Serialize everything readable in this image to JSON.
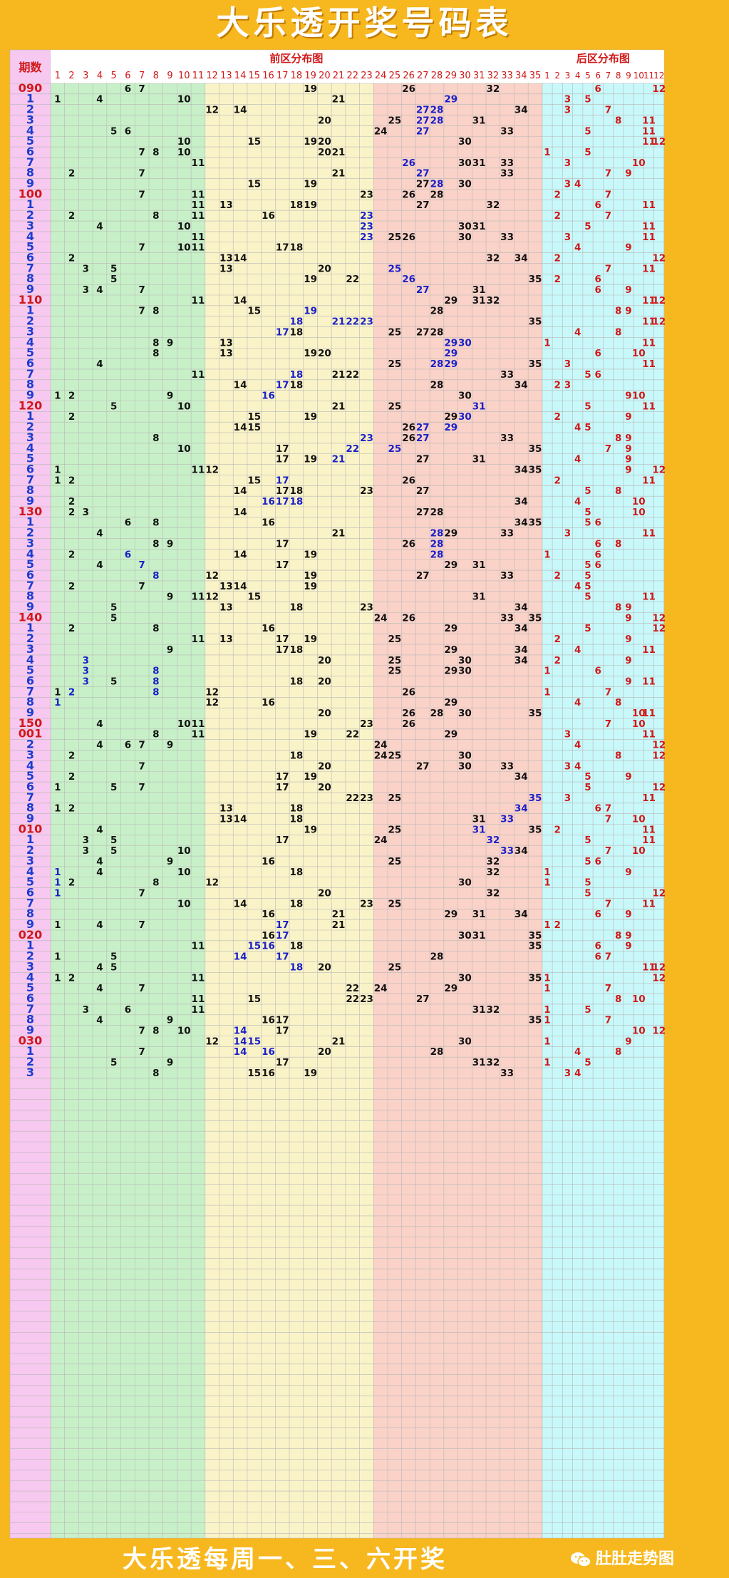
{
  "title": "大乐透开奖号码表",
  "footer": {
    "slogan": "大乐透每周一、三、六开奖",
    "brand": "肚肚走势图"
  },
  "headers": {
    "period": "期数",
    "front": "前区分布图",
    "back": "后区分布图"
  },
  "front_numbers": [
    "1",
    "2",
    "3",
    "4",
    "5",
    "6",
    "7",
    "8",
    "9",
    "10",
    "11",
    "12",
    "13",
    "14",
    "15",
    "16",
    "17",
    "18",
    "19",
    "20",
    "21",
    "22",
    "23",
    "24",
    "25",
    "26",
    "27",
    "28",
    "29",
    "30",
    "31",
    "32",
    "33",
    "34",
    "35"
  ],
  "back_numbers": [
    "1",
    "2",
    "3",
    "4",
    "5",
    "6",
    "7",
    "8",
    "9",
    "10",
    "11",
    "12"
  ],
  "colors": {
    "period_bg": "#f7c8f0",
    "front_zones": [
      "#c8f0c8",
      "#faf3c8",
      "#fad2c8"
    ],
    "back_bg": "#c8f8fa",
    "black": "#111111",
    "blue": "#1a20c8",
    "red": "#d01818",
    "grid_line": "#b8b8b8"
  },
  "rows": [
    {
      "p": "090",
      "pc": "r",
      "f": [
        6,
        7,
        19,
        26,
        32
      ],
      "b": [
        6,
        12
      ]
    },
    {
      "p": "1",
      "f": [
        1,
        4,
        10,
        21,
        29
      ],
      "fb": [
        29
      ],
      "b": [
        3,
        5
      ]
    },
    {
      "p": "2",
      "f": [
        12,
        14,
        27,
        28,
        34
      ],
      "fb": [
        27,
        28
      ],
      "b": [
        3,
        7
      ]
    },
    {
      "p": "3",
      "f": [
        20,
        25,
        27,
        28,
        31
      ],
      "fb": [
        27,
        28
      ],
      "b": [
        8,
        11
      ]
    },
    {
      "p": "4",
      "f": [
        5,
        6,
        24,
        27,
        33
      ],
      "fb": [
        27
      ],
      "b": [
        5,
        11
      ]
    },
    {
      "p": "5",
      "f": [
        10,
        15,
        19,
        20,
        30
      ],
      "b": [
        11,
        12
      ]
    },
    {
      "p": "6",
      "f": [
        7,
        8,
        10,
        20,
        21
      ],
      "b": [
        1,
        5
      ]
    },
    {
      "p": "7",
      "f": [
        11,
        26,
        30,
        31,
        33
      ],
      "fb": [
        26
      ],
      "b": [
        3,
        10
      ]
    },
    {
      "p": "8",
      "f": [
        2,
        7,
        21,
        27,
        33
      ],
      "fb": [
        27
      ],
      "b": [
        7,
        9
      ]
    },
    {
      "p": "9",
      "f": [
        15,
        19,
        27,
        28,
        30
      ],
      "fb": [
        28
      ],
      "b": [
        3,
        4
      ]
    },
    {
      "p": "100",
      "pc": "r",
      "f": [
        7,
        11,
        23,
        26,
        28
      ],
      "b": [
        2,
        7
      ]
    },
    {
      "p": "1",
      "f": [
        11,
        13,
        18,
        19,
        27,
        32
      ],
      "b": [
        6,
        11
      ]
    },
    {
      "p": "2",
      "f": [
        2,
        8,
        11,
        16,
        23
      ],
      "fb": [
        23
      ],
      "b": [
        2,
        7
      ]
    },
    {
      "p": "3",
      "f": [
        4,
        10,
        23,
        30,
        31
      ],
      "fb": [
        23
      ],
      "b": [
        5,
        11
      ]
    },
    {
      "p": "4",
      "f": [
        11,
        23,
        25,
        26,
        30,
        33
      ],
      "fb": [
        23
      ],
      "b": [
        3,
        11
      ]
    },
    {
      "p": "5",
      "f": [
        7,
        10,
        11,
        17,
        18
      ],
      "b": [
        4,
        9
      ]
    },
    {
      "p": "6",
      "f": [
        2,
        13,
        14,
        32,
        34
      ],
      "b": [
        2,
        12
      ]
    },
    {
      "p": "7",
      "f": [
        3,
        5,
        13,
        20,
        25
      ],
      "fb": [
        25
      ],
      "b": [
        7,
        11
      ]
    },
    {
      "p": "8",
      "f": [
        5,
        19,
        22,
        26,
        35
      ],
      "fb": [
        26
      ],
      "b": [
        2,
        6
      ]
    },
    {
      "p": "9",
      "f": [
        3,
        4,
        7,
        27,
        31
      ],
      "fb": [
        27
      ],
      "b": [
        6,
        9
      ]
    },
    {
      "p": "110",
      "pc": "r",
      "f": [
        11,
        14,
        29,
        31,
        32
      ],
      "b": [
        11,
        12
      ]
    },
    {
      "p": "1",
      "f": [
        7,
        8,
        15,
        19,
        28
      ],
      "fb": [
        19
      ],
      "b": [
        8,
        9
      ]
    },
    {
      "p": "2",
      "f": [
        18,
        21,
        22,
        23,
        35
      ],
      "fb": [
        18,
        21,
        22,
        23
      ],
      "b": [
        11,
        12
      ]
    },
    {
      "p": "3",
      "f": [
        17,
        18,
        25,
        27,
        28
      ],
      "fb": [
        17
      ],
      "b": [
        4,
        8
      ]
    },
    {
      "p": "4",
      "f": [
        8,
        9,
        13,
        29,
        30
      ],
      "fb": [
        29,
        30
      ],
      "b": [
        1,
        11
      ]
    },
    {
      "p": "5",
      "f": [
        8,
        13,
        19,
        20,
        29
      ],
      "fb": [
        29
      ],
      "b": [
        6,
        10
      ]
    },
    {
      "p": "6",
      "f": [
        4,
        25,
        28,
        29,
        35
      ],
      "fb": [
        28,
        29
      ],
      "b": [
        3,
        11
      ]
    },
    {
      "p": "7",
      "f": [
        11,
        18,
        21,
        22,
        33
      ],
      "fb": [
        18
      ],
      "b": [
        5,
        6
      ]
    },
    {
      "p": "8",
      "f": [
        14,
        17,
        18,
        28,
        34
      ],
      "fb": [
        17
      ],
      "b": [
        2,
        3
      ]
    },
    {
      "p": "9",
      "f": [
        1,
        2,
        9,
        16,
        30
      ],
      "fb": [
        16
      ],
      "b": [
        9,
        10
      ]
    },
    {
      "p": "120",
      "pc": "r",
      "f": [
        5,
        10,
        21,
        25,
        31
      ],
      "fb": [
        31
      ],
      "b": [
        5,
        11
      ]
    },
    {
      "p": "1",
      "f": [
        2,
        15,
        19,
        29,
        30
      ],
      "fb": [
        30
      ],
      "b": [
        2,
        9
      ]
    },
    {
      "p": "2",
      "f": [
        14,
        15,
        26,
        27,
        29
      ],
      "fb": [
        27,
        29
      ],
      "b": [
        4,
        5
      ]
    },
    {
      "p": "3",
      "f": [
        8,
        23,
        26,
        27,
        33
      ],
      "fb": [
        23,
        27
      ],
      "b": [
        8,
        9
      ]
    },
    {
      "p": "4",
      "f": [
        10,
        17,
        22,
        25,
        35
      ],
      "fb": [
        22,
        25
      ],
      "b": [
        7,
        9
      ]
    },
    {
      "p": "5",
      "f": [
        17,
        19,
        21,
        27,
        31
      ],
      "fb": [
        21
      ],
      "b": [
        4,
        9
      ]
    },
    {
      "p": "6",
      "f": [
        1,
        11,
        12,
        34,
        35
      ],
      "b": [
        9,
        12
      ]
    },
    {
      "p": "7",
      "f": [
        1,
        2,
        15,
        17,
        26
      ],
      "fb": [
        17
      ],
      "b": [
        2,
        11
      ]
    },
    {
      "p": "8",
      "f": [
        14,
        17,
        18,
        23,
        27
      ],
      "b": [
        5,
        8
      ]
    },
    {
      "p": "9",
      "f": [
        2,
        16,
        17,
        18,
        34
      ],
      "fb": [
        16,
        17,
        18
      ],
      "b": [
        4,
        10
      ]
    },
    {
      "p": "130",
      "pc": "r",
      "f": [
        2,
        3,
        14,
        27,
        28
      ],
      "b": [
        5,
        10
      ]
    },
    {
      "p": "1",
      "f": [
        6,
        8,
        16,
        34,
        35
      ],
      "b": [
        5,
        6
      ]
    },
    {
      "p": "2",
      "f": [
        4,
        21,
        28,
        29,
        33
      ],
      "fb": [
        28
      ],
      "b": [
        3,
        11
      ]
    },
    {
      "p": "3",
      "f": [
        8,
        9,
        17,
        26,
        28
      ],
      "fb": [
        28
      ],
      "b": [
        6,
        8
      ]
    },
    {
      "p": "4",
      "f": [
        2,
        6,
        14,
        19,
        28
      ],
      "fb": [
        6,
        28
      ],
      "b": [
        1,
        6
      ]
    },
    {
      "p": "5",
      "f": [
        4,
        7,
        17,
        29,
        31
      ],
      "fb": [
        7
      ],
      "b": [
        5,
        6
      ]
    },
    {
      "p": "6",
      "f": [
        8,
        12,
        19,
        27,
        33
      ],
      "fb": [
        8
      ],
      "b": [
        2,
        5
      ]
    },
    {
      "p": "7",
      "f": [
        2,
        7,
        13,
        14,
        19
      ],
      "b": [
        4,
        5
      ]
    },
    {
      "p": "8",
      "f": [
        9,
        11,
        12,
        15,
        31
      ],
      "b": [
        5,
        11
      ]
    },
    {
      "p": "9",
      "f": [
        5,
        13,
        18,
        23,
        34
      ],
      "b": [
        8,
        9
      ]
    },
    {
      "p": "140",
      "pc": "r",
      "f": [
        5,
        24,
        26,
        33,
        35
      ],
      "b": [
        9,
        12
      ]
    },
    {
      "p": "1",
      "f": [
        2,
        8,
        16,
        29,
        34
      ],
      "b": [
        5,
        12
      ]
    },
    {
      "p": "2",
      "f": [
        11,
        13,
        17,
        19,
        25
      ],
      "b": [
        2,
        9
      ]
    },
    {
      "p": "3",
      "f": [
        9,
        17,
        18,
        29,
        34
      ],
      "b": [
        4,
        11
      ]
    },
    {
      "p": "4",
      "f": [
        3,
        20,
        25,
        30,
        34
      ],
      "fb": [
        3
      ],
      "b": [
        2,
        9
      ]
    },
    {
      "p": "5",
      "f": [
        3,
        8,
        25,
        29,
        30
      ],
      "fb": [
        3,
        8
      ],
      "b": [
        1,
        6
      ]
    },
    {
      "p": "6",
      "f": [
        3,
        5,
        8,
        18,
        20
      ],
      "fb": [
        3,
        8
      ],
      "b": [
        9,
        11
      ]
    },
    {
      "p": "7",
      "f": [
        1,
        2,
        8,
        12,
        26
      ],
      "fb": [
        2,
        8
      ],
      "b": [
        1,
        7
      ]
    },
    {
      "p": "8",
      "f": [
        1,
        12,
        16,
        29
      ],
      "fb": [
        1
      ],
      "b": [
        4,
        8
      ]
    },
    {
      "p": "9",
      "f": [
        20,
        26,
        28,
        30,
        35
      ],
      "b": [
        10,
        11
      ]
    },
    {
      "p": "150",
      "pc": "r",
      "f": [
        4,
        10,
        11,
        23,
        26
      ],
      "b": [
        7,
        10
      ]
    },
    {
      "p": "001",
      "pc": "r",
      "f": [
        8,
        11,
        19,
        22,
        29
      ],
      "b": [
        3,
        11
      ]
    },
    {
      "p": "2",
      "f": [
        4,
        6,
        7,
        9,
        24
      ],
      "b": [
        4,
        12
      ]
    },
    {
      "p": "3",
      "f": [
        2,
        18,
        24,
        25,
        30
      ],
      "b": [
        8,
        12
      ]
    },
    {
      "p": "4",
      "f": [
        7,
        20,
        27,
        30,
        33
      ],
      "b": [
        3,
        4
      ]
    },
    {
      "p": "5",
      "f": [
        2,
        17,
        19,
        34
      ],
      "b": [
        5,
        9
      ]
    },
    {
      "p": "6",
      "f": [
        1,
        5,
        7,
        17,
        20
      ],
      "b": [
        5,
        12
      ]
    },
    {
      "p": "7",
      "f": [
        22,
        23,
        25,
        35
      ],
      "fb": [
        35
      ],
      "b": [
        3,
        11
      ]
    },
    {
      "p": "8",
      "f": [
        1,
        2,
        13,
        18,
        34
      ],
      "fb": [
        34
      ],
      "b": [
        6,
        7
      ]
    },
    {
      "p": "9",
      "f": [
        13,
        14,
        18,
        31,
        33
      ],
      "fb": [
        33
      ],
      "b": [
        7,
        10
      ]
    },
    {
      "p": "010",
      "pc": "r",
      "f": [
        4,
        19,
        25,
        31,
        35
      ],
      "fb": [
        31
      ],
      "b": [
        2,
        11
      ]
    },
    {
      "p": "1",
      "f": [
        3,
        5,
        17,
        24,
        32
      ],
      "fb": [
        32
      ],
      "b": [
        5,
        11
      ]
    },
    {
      "p": "2",
      "f": [
        3,
        5,
        10,
        33,
        34
      ],
      "fb": [
        33
      ],
      "b": [
        7,
        10
      ]
    },
    {
      "p": "3",
      "f": [
        4,
        9,
        16,
        25,
        32
      ],
      "b": [
        5,
        6
      ]
    },
    {
      "p": "4",
      "f": [
        1,
        4,
        10,
        18,
        32
      ],
      "fb": [
        1
      ],
      "b": [
        1,
        9
      ]
    },
    {
      "p": "5",
      "f": [
        1,
        2,
        8,
        12,
        30
      ],
      "fb": [
        1
      ],
      "b": [
        1,
        5
      ]
    },
    {
      "p": "6",
      "f": [
        1,
        7,
        20,
        32
      ],
      "fb": [
        1
      ],
      "b": [
        5,
        12
      ]
    },
    {
      "p": "7",
      "f": [
        10,
        14,
        18,
        23,
        25
      ],
      "b": [
        7,
        11
      ]
    },
    {
      "p": "8",
      "f": [
        16,
        21,
        29,
        31,
        34
      ],
      "b": [
        6,
        9
      ]
    },
    {
      "p": "9",
      "f": [
        1,
        4,
        7,
        17,
        21
      ],
      "fb": [
        17
      ],
      "b": [
        1,
        2
      ]
    },
    {
      "p": "020",
      "pc": "r",
      "f": [
        16,
        17,
        30,
        31,
        35
      ],
      "fb": [
        17
      ],
      "b": [
        8,
        9
      ]
    },
    {
      "p": "1",
      "f": [
        11,
        15,
        16,
        18,
        35
      ],
      "fb": [
        15,
        16
      ],
      "b": [
        6,
        9
      ]
    },
    {
      "p": "2",
      "f": [
        1,
        5,
        14,
        17,
        28
      ],
      "fb": [
        14,
        17
      ],
      "b": [
        6,
        7
      ]
    },
    {
      "p": "3",
      "f": [
        4,
        5,
        18,
        20,
        25
      ],
      "fb": [
        18
      ],
      "b": [
        11,
        12
      ]
    },
    {
      "p": "4",
      "f": [
        1,
        2,
        11,
        30,
        35
      ],
      "b": [
        1,
        12
      ]
    },
    {
      "p": "5",
      "f": [
        4,
        7,
        22,
        24,
        29
      ],
      "b": [
        1,
        7
      ]
    },
    {
      "p": "6",
      "f": [
        11,
        15,
        22,
        23,
        27
      ],
      "b": [
        8,
        10
      ]
    },
    {
      "p": "7",
      "f": [
        3,
        6,
        11,
        31,
        32
      ],
      "b": [
        1,
        5
      ]
    },
    {
      "p": "8",
      "f": [
        4,
        9,
        16,
        17,
        35
      ],
      "b": [
        1,
        7
      ]
    },
    {
      "p": "9",
      "f": [
        7,
        8,
        10,
        14,
        17
      ],
      "fb": [
        14
      ],
      "b": [
        10,
        12
      ]
    },
    {
      "p": "030",
      "pc": "r",
      "f": [
        12,
        14,
        15,
        21,
        30
      ],
      "fb": [
        14,
        15
      ],
      "b": [
        1,
        9
      ]
    },
    {
      "p": "1",
      "f": [
        7,
        14,
        16,
        20,
        28
      ],
      "fb": [
        14,
        16
      ],
      "b": [
        4,
        8
      ]
    },
    {
      "p": "2",
      "f": [
        5,
        9,
        17,
        31,
        32
      ],
      "b": [
        1,
        5
      ]
    },
    {
      "p": "3",
      "f": [
        8,
        15,
        16,
        19,
        33
      ],
      "b": [
        3,
        4
      ]
    }
  ]
}
